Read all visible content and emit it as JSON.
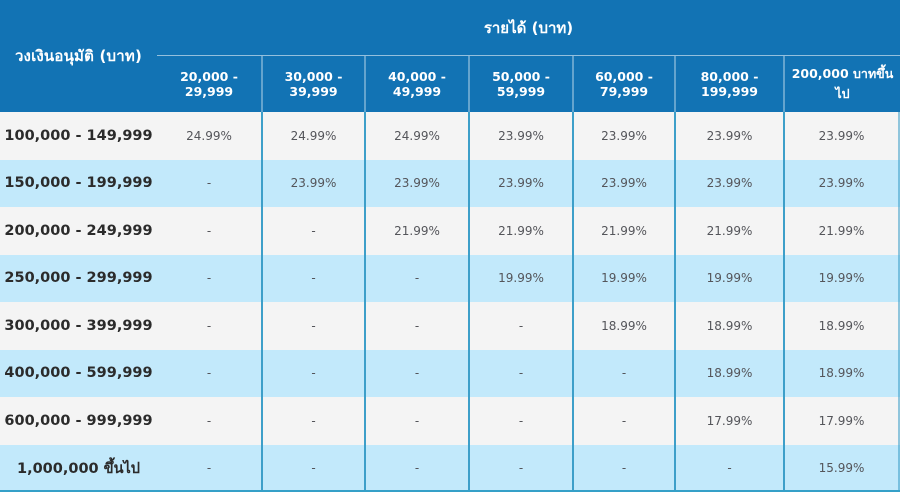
{
  "table": {
    "corner_header": "วงเงินอนุมัติ (บาท)",
    "group_header": "รายได้ (บาท)",
    "columns": [
      "20,000 - 29,999",
      "30,000 - 39,999",
      "40,000 - 49,999",
      "50,000 - 59,999",
      "60,000 - 79,999",
      "80,000 - 199,999",
      "200,000 บาทขึ้นไป"
    ],
    "rows": [
      {
        "label": "100,000 - 149,999",
        "values": [
          "24.99%",
          "24.99%",
          "24.99%",
          "23.99%",
          "23.99%",
          "23.99%",
          "23.99%"
        ]
      },
      {
        "label": "150,000 - 199,999",
        "values": [
          "-",
          "23.99%",
          "23.99%",
          "23.99%",
          "23.99%",
          "23.99%",
          "23.99%"
        ]
      },
      {
        "label": "200,000 - 249,999",
        "values": [
          "-",
          "-",
          "21.99%",
          "21.99%",
          "21.99%",
          "21.99%",
          "21.99%"
        ]
      },
      {
        "label": "250,000 - 299,999",
        "values": [
          "-",
          "-",
          "-",
          "19.99%",
          "19.99%",
          "19.99%",
          "19.99%"
        ]
      },
      {
        "label": "300,000 - 399,999",
        "values": [
          "-",
          "-",
          "-",
          "-",
          "18.99%",
          "18.99%",
          "18.99%"
        ]
      },
      {
        "label": "400,000 - 599,999",
        "values": [
          "-",
          "-",
          "-",
          "-",
          "-",
          "18.99%",
          "18.99%"
        ]
      },
      {
        "label": "600,000 - 999,999",
        "values": [
          "-",
          "-",
          "-",
          "-",
          "-",
          "17.99%",
          "17.99%"
        ]
      },
      {
        "label": "1,000,000 ขึ้นไป",
        "values": [
          "-",
          "-",
          "-",
          "-",
          "-",
          "-",
          "15.99%"
        ]
      }
    ],
    "colors": {
      "header_bg": "#1273b4",
      "row_gray": "#f4f4f4",
      "row_blue": "#c2e9fb",
      "divider": "#3d9fc9",
      "header_text": "#ffffff",
      "label_text": "#2b2b2b",
      "value_text": "#54555a"
    }
  },
  "chart_data": {
    "type": "table",
    "title": "รายได้ (บาท)",
    "row_axis_label": "วงเงินอนุมัติ (บาท)",
    "columns": [
      "20,000 - 29,999",
      "30,000 - 39,999",
      "40,000 - 49,999",
      "50,000 - 59,999",
      "60,000 - 79,999",
      "80,000 - 199,999",
      "200,000 บาทขึ้นไป"
    ],
    "row_labels": [
      "100,000 - 149,999",
      "150,000 - 199,999",
      "200,000 - 249,999",
      "250,000 - 299,999",
      "300,000 - 399,999",
      "400,000 - 599,999",
      "600,000 - 999,999",
      "1,000,000 ขึ้นไป"
    ],
    "values_percent": [
      [
        24.99,
        24.99,
        24.99,
        23.99,
        23.99,
        23.99,
        23.99
      ],
      [
        null,
        23.99,
        23.99,
        23.99,
        23.99,
        23.99,
        23.99
      ],
      [
        null,
        null,
        21.99,
        21.99,
        21.99,
        21.99,
        21.99
      ],
      [
        null,
        null,
        null,
        19.99,
        19.99,
        19.99,
        19.99
      ],
      [
        null,
        null,
        null,
        null,
        18.99,
        18.99,
        18.99
      ],
      [
        null,
        null,
        null,
        null,
        null,
        18.99,
        18.99
      ],
      [
        null,
        null,
        null,
        null,
        null,
        17.99,
        17.99
      ],
      [
        null,
        null,
        null,
        null,
        null,
        null,
        15.99
      ]
    ]
  }
}
